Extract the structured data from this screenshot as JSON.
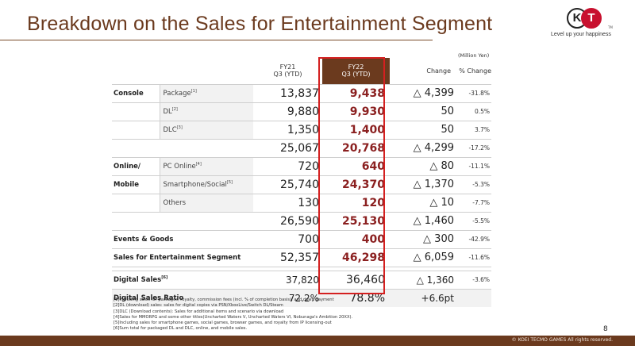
{
  "title": "Breakdown on the Sales for Entertainment Segment",
  "logo": {
    "left": "K",
    "right": "T",
    "tm": "TM",
    "tagline": "Level up your happiness"
  },
  "unit": "(Million Yen)",
  "headers": {
    "fy21_line1": "FY21",
    "fy21_line2": "Q3 (YTD)",
    "fy22_line1": "FY22",
    "fy22_line2": "Q3 (YTD)",
    "change": "Change",
    "pct_change": "% Change"
  },
  "console": {
    "label": "Console",
    "package": {
      "label": "Package",
      "note": "[1]",
      "fy21": "13,837",
      "fy22": "9,438",
      "change": "△ 4,399",
      "pct": "-31.8%"
    },
    "dl": {
      "label": "DL",
      "note": "[2]",
      "fy21": "9,880",
      "fy22": "9,930",
      "change": "50",
      "pct": "0.5%"
    },
    "dlc": {
      "label": "DLC",
      "note": "[3]",
      "fy21": "1,350",
      "fy22": "1,400",
      "change": "50",
      "pct": "3.7%"
    },
    "total": {
      "fy21": "25,067",
      "fy22": "20,768",
      "change": "△ 4,299",
      "pct": "-17.2%"
    }
  },
  "online": {
    "label1": "Online/",
    "label2": "Mobile",
    "pc": {
      "label": "PC Online",
      "note": "[4]",
      "fy21": "720",
      "fy22": "640",
      "change": "△ 80",
      "pct": "-11.1%"
    },
    "smartphone": {
      "label": "Smartphone/Social",
      "note": "[5]",
      "fy21": "25,740",
      "fy22": "24,370",
      "change": "△ 1,370",
      "pct": "-5.3%"
    },
    "others": {
      "label": "Others",
      "fy21": "130",
      "fy22": "120",
      "change": "△ 10",
      "pct": "-7.7%"
    },
    "total": {
      "fy21": "26,590",
      "fy22": "25,130",
      "change": "△ 1,460",
      "pct": "-5.5%"
    }
  },
  "events": {
    "label": "Events & Goods",
    "fy21": "700",
    "fy22": "400",
    "change": "△ 300",
    "pct": "-42.9%"
  },
  "segment": {
    "label": "Sales for Entertainment Segment",
    "fy21": "52,357",
    "fy22": "46,298",
    "change": "△ 6,059",
    "pct": "-11.6%"
  },
  "digital": {
    "label": "Digital Sales",
    "note": "[6]",
    "fy21": "37,820",
    "fy22": "36,460",
    "change": "△ 1,360",
    "pct": "-3.6%"
  },
  "ratio": {
    "label": "Digital Sales Ratio",
    "fy21": "72.2%",
    "fy22": "78.8%",
    "change": "+6.6pt"
  },
  "notes": [
    "[1]Including sales for packages, royalty, commission fees (incl. % of completion basis), and down payment",
    "[2]DL (download) sales: sales for digital copies via PSN/XboxLive/Switch DL/Steam",
    "[3]DLC (Download contents): Sales for additional items and scenario via download",
    "[4]Sales for MMORPG and some other titles(Uncharted Waters V, Uncharted Waters VI, Nobunaga's Ambition 20XX).",
    "[5]Including sales for smartphone games, social games, browser games, and royalty from IP licensing-out",
    "[6]Sum total for packaged DL and DLC, online, and mobile sales."
  ],
  "page_number": "8",
  "copyright": "© KOEI TECMO GAMES All rights reserved.",
  "colors": {
    "brand": "#6b3a1e",
    "highlight": "#8b2020",
    "box": "#d42020"
  }
}
